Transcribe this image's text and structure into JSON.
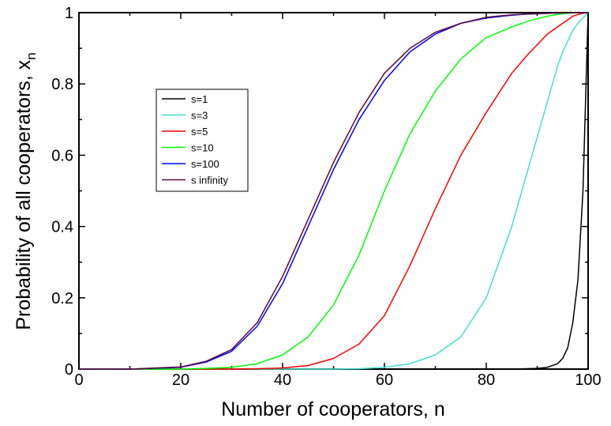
{
  "chart_data": {
    "type": "line",
    "xlabel": "Number of cooperators, n",
    "ylabel_main": "Probability of all cooperators, x",
    "ylabel_sub": "n",
    "xlim": [
      0,
      100
    ],
    "ylim": [
      0,
      1
    ],
    "x_ticks": [
      0,
      20,
      40,
      60,
      80,
      100
    ],
    "x_tick_labels": [
      "0",
      "20",
      "40",
      "60",
      "80",
      "100"
    ],
    "y_ticks": [
      0,
      0.2,
      0.4,
      0.6,
      0.8,
      1
    ],
    "y_tick_labels": [
      "0",
      "0.2",
      "0.4",
      "0.6",
      "0.8",
      "1"
    ],
    "grid": false,
    "legend_position": "upper-left",
    "x": [
      0,
      10,
      20,
      25,
      30,
      35,
      40,
      45,
      50,
      55,
      60,
      65,
      70,
      75,
      80,
      85,
      88,
      90,
      92,
      94,
      95,
      96,
      97,
      98,
      99,
      100
    ],
    "series": [
      {
        "name": "s=1",
        "color": "#000000",
        "values": [
          0,
          0,
          0,
          0,
          0,
          0,
          0,
          0,
          0,
          0,
          0,
          0,
          0,
          0,
          0,
          0,
          0.001,
          0.002,
          0.005,
          0.015,
          0.03,
          0.06,
          0.13,
          0.25,
          0.5,
          1
        ]
      },
      {
        "name": "s=3",
        "color": "#40e0d0",
        "values": [
          0,
          0,
          0,
          0,
          0,
          0,
          0,
          0,
          0,
          0.001,
          0.005,
          0.015,
          0.04,
          0.09,
          0.2,
          0.4,
          0.55,
          0.65,
          0.75,
          0.85,
          0.89,
          0.92,
          0.95,
          0.97,
          0.985,
          1
        ]
      },
      {
        "name": "s=5",
        "color": "#ff0000",
        "values": [
          0,
          0,
          0,
          0,
          0,
          0.001,
          0.003,
          0.01,
          0.03,
          0.07,
          0.15,
          0.29,
          0.45,
          0.6,
          0.72,
          0.83,
          0.88,
          0.91,
          0.94,
          0.96,
          0.97,
          0.98,
          0.99,
          0.995,
          0.998,
          1
        ]
      },
      {
        "name": "s=10",
        "color": "#00ff00",
        "values": [
          0,
          0,
          0,
          0.002,
          0.005,
          0.015,
          0.04,
          0.09,
          0.18,
          0.32,
          0.5,
          0.66,
          0.78,
          0.87,
          0.93,
          0.96,
          0.975,
          0.983,
          0.99,
          0.995,
          0.997,
          0.998,
          0.999,
          0.9995,
          0.9998,
          1
        ]
      },
      {
        "name": "s=100",
        "color": "#0000ff",
        "values": [
          0,
          0,
          0.005,
          0.02,
          0.05,
          0.12,
          0.24,
          0.4,
          0.56,
          0.7,
          0.81,
          0.89,
          0.94,
          0.97,
          0.985,
          0.993,
          0.996,
          0.997,
          0.998,
          0.999,
          0.9993,
          0.9995,
          0.9997,
          0.9998,
          0.9999,
          1
        ]
      },
      {
        "name": "s infinity",
        "color": "#5a0a3a",
        "values": [
          0,
          0,
          0.006,
          0.022,
          0.055,
          0.13,
          0.26,
          0.42,
          0.58,
          0.72,
          0.83,
          0.9,
          0.945,
          0.97,
          0.987,
          0.994,
          0.996,
          0.997,
          0.998,
          0.999,
          0.9993,
          0.9995,
          0.9997,
          0.9998,
          0.9999,
          1
        ]
      }
    ]
  }
}
